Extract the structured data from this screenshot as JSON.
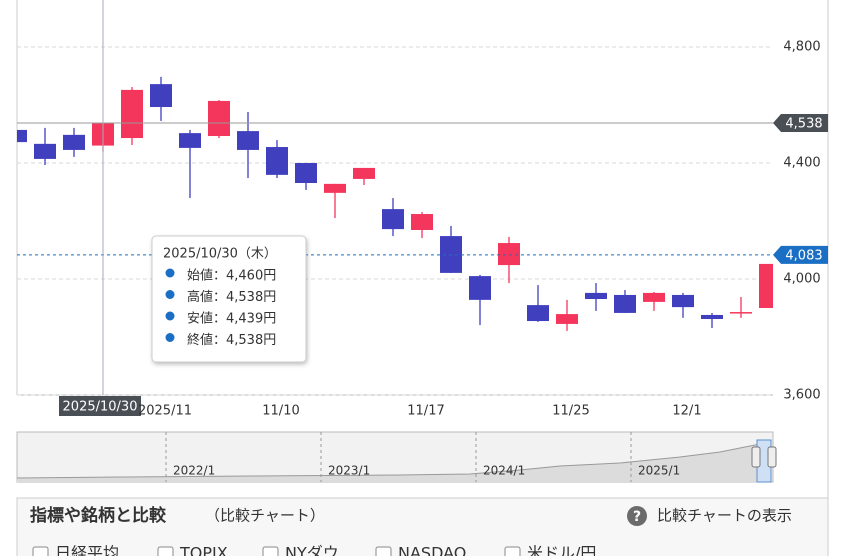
{
  "chart_data": {
    "type": "candlestick",
    "categories": [
      null,
      null,
      null,
      "2025/10/30",
      null,
      "2025/11",
      null,
      null,
      null,
      "11/10",
      null,
      null,
      null,
      null,
      "11/17",
      null,
      null,
      null,
      null,
      "11/25",
      null,
      null,
      null,
      "12/1",
      null,
      null,
      null
    ],
    "open": [
      4514,
      4466,
      4497,
      4460,
      4486,
      4672,
      4503,
      4493,
      4510,
      4455,
      4400,
      4297,
      4345,
      4241,
      4169,
      4148,
      4010,
      4048,
      3910,
      3845,
      3952,
      3945,
      3921,
      3945,
      3876,
      3883,
      3900
    ],
    "high": [
      4576,
      4521,
      4521,
      4538,
      4662,
      4697,
      4514,
      4617,
      4576,
      4479,
      4400,
      4328,
      4383,
      4279,
      4231,
      4183,
      4014,
      4145,
      3979,
      3928,
      3986,
      3962,
      3955,
      3952,
      3883,
      3938,
      4052
    ],
    "low": [
      4417,
      4393,
      4421,
      4439,
      4462,
      4545,
      4279,
      4486,
      4348,
      4348,
      4307,
      4210,
      4324,
      4148,
      4141,
      4021,
      3841,
      3986,
      3852,
      3821,
      3890,
      3883,
      3890,
      3866,
      3831,
      3866,
      3900
    ],
    "close": [
      4472,
      4414,
      4445,
      4538,
      4652,
      4593,
      4452,
      4614,
      4445,
      4359,
      4331,
      4328,
      4383,
      4172,
      4224,
      4021,
      3928,
      4124,
      3855,
      3879,
      3931,
      3883,
      3952,
      3903,
      3862,
      3886,
      4052
    ],
    "up_color": "#f5365c",
    "down_color": "#4040bf",
    "ylim": [
      3600,
      4962
    ],
    "yticks": [
      {
        "value": 3600,
        "label": "3,600"
      },
      {
        "value": 4000,
        "label": "4,000"
      },
      {
        "value": 4400,
        "label": "4,400"
      },
      {
        "value": 4800,
        "label": "4,800"
      }
    ],
    "grid": true,
    "price_lines": [
      {
        "value": 4538,
        "label": "4,538",
        "style": "solid",
        "color": "#4a4f55"
      },
      {
        "value": 4083,
        "label": "4,083",
        "style": "dashed",
        "color": "#1a6fc4"
      }
    ],
    "tooltip": {
      "title": "2025/10/30（木）",
      "rows": [
        "始値：4,460円",
        "高値：4,538円",
        "安値：4,439円",
        "終値：4,538円"
      ]
    },
    "navigator": {
      "labels": [
        "2022/1",
        "2023/1",
        "2024/1",
        "2025/1"
      ]
    }
  },
  "compare_panel": {
    "title": "指標や銘柄と比較",
    "subtitle": "（比較チャート）",
    "toggle": "比較チャートの表示",
    "options": [
      "日経平均",
      "TOPIX",
      "NYダウ",
      "NASDAQ",
      "米ドル/円"
    ]
  }
}
